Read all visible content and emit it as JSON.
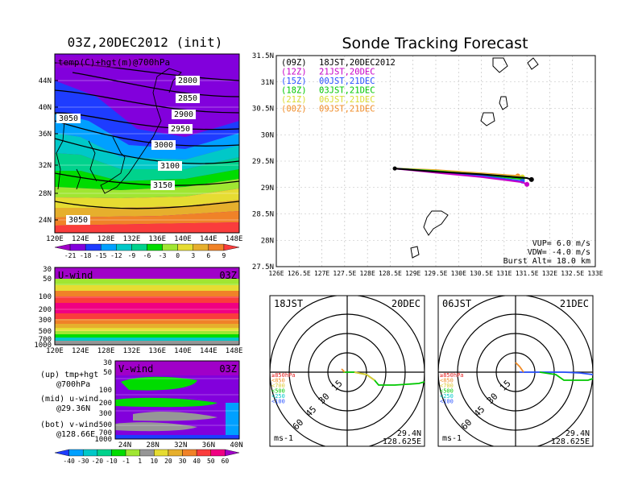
{
  "left_top": {
    "title": "03Z,20DEC2012 (init)",
    "label": "temp(C)+hgt(m)@700hPa",
    "lat_ticks": [
      "44N",
      "40N",
      "36N",
      "32N",
      "28N",
      "24N"
    ],
    "lon_ticks": [
      "120E",
      "124E",
      "128E",
      "132E",
      "136E",
      "140E",
      "144E",
      "148E"
    ],
    "contours": [
      "2800",
      "2850",
      "2900",
      "2950",
      "3000",
      "3050",
      "3100",
      "3150",
      "3050"
    ],
    "colorbar_labels": [
      "-21",
      "-18",
      "-15",
      "-12",
      "-9",
      "-6",
      "-3",
      "0",
      "3",
      "6",
      "9"
    ],
    "colorbar_colors": [
      "#a000c8",
      "#8200dc",
      "#1e3cff",
      "#00a0ff",
      "#00c8c8",
      "#00d28c",
      "#00dc00",
      "#a0e632",
      "#e6dc32",
      "#e6af2d",
      "#f08228",
      "#fa3c3c"
    ]
  },
  "u_wind": {
    "label": "U-wind",
    "time": "03Z",
    "p_ticks": [
      "30",
      "50",
      "100",
      "200",
      "300",
      "500",
      "700",
      "1000"
    ],
    "lon_ticks": [
      "120E",
      "124E",
      "128E",
      "132E",
      "136E",
      "140E",
      "144E",
      "148E"
    ]
  },
  "v_wind": {
    "label": "V-wind",
    "time": "03Z",
    "p_ticks": [
      "30",
      "50",
      "100",
      "200",
      "300",
      "500",
      "700",
      "1000"
    ],
    "lat_ticks": [
      "24N",
      "28N",
      "32N",
      "36N",
      "40N"
    ]
  },
  "panel_notes": [
    [
      "(up) tmp+hgt",
      "@700hPa"
    ],
    [
      "(mid) u-wind",
      "@29.36N"
    ],
    [
      "(bot) v-wind",
      "@128.66E"
    ]
  ],
  "bottom_colorbar": {
    "labels": [
      "-40",
      "-30",
      "-20",
      "-10",
      "-1",
      "1",
      "10",
      "20",
      "30",
      "40",
      "50",
      "60"
    ],
    "colors": [
      "#1e3cff",
      "#00a0ff",
      "#00c8c8",
      "#00d28c",
      "#00dc00",
      "#a0e632",
      "#969696",
      "#e6dc32",
      "#e6af2d",
      "#f08228",
      "#fa3c3c",
      "#f00082",
      "#a000c8"
    ]
  },
  "tracking": {
    "title": "Sonde Tracking Forecast",
    "lat_ticks": [
      "31.5N",
      "31N",
      "30.5N",
      "30N",
      "29.5N",
      "29N",
      "28.5N",
      "28N",
      "27.5N"
    ],
    "lon_ticks": [
      "126E",
      "126.5E",
      "127E",
      "127.5E",
      "128E",
      "128.5E",
      "129E",
      "129.5E",
      "130E",
      "130.5E",
      "131E",
      "131.5E",
      "132E",
      "132.5E",
      "133E"
    ],
    "legend": [
      {
        "code": "(09Z)",
        "label": "18JST,20DEC2012",
        "color": "#000000"
      },
      {
        "code": "(12Z)",
        "label": "21JST,20DEC",
        "color": "#c800c8"
      },
      {
        "code": "(15Z)",
        "label": "00JST,21DEC",
        "color": "#2850ff"
      },
      {
        "code": "(18Z)",
        "label": "03JST,21DEC",
        "color": "#00c800"
      },
      {
        "code": "(21Z)",
        "label": "06JST,21DEC",
        "color": "#dcdc32"
      },
      {
        "code": "(00Z)",
        "label": "09JST,21DEC",
        "color": "#f08c28"
      }
    ],
    "info": [
      "VUP= 6.0 m/s",
      "VDW= -4.0 m/s",
      "Burst Alt= 18.0 km"
    ]
  },
  "polar_left": {
    "time": "18JST",
    "date": "20DEC",
    "ring_labels": [
      "15",
      "30",
      "45",
      "60"
    ],
    "levels": [
      {
        "label": "≥850hPa",
        "color": "#e61e1e"
      },
      {
        "label": "<850",
        "color": "#f08c28"
      },
      {
        "label": "<700",
        "color": "#dcc832"
      },
      {
        "label": "<500",
        "color": "#00c800"
      },
      {
        "label": "<250",
        "color": "#00c8c8"
      },
      {
        "label": "<100",
        "color": "#2850ff"
      }
    ],
    "unit": "ms-1",
    "lat": "29.4N",
    "lon": "128.625E"
  },
  "polar_right": {
    "time": "06JST",
    "date": "21DEC",
    "ring_labels": [
      "15",
      "30",
      "45",
      "60"
    ],
    "levels": [
      {
        "label": "≥850hPa",
        "color": "#e61e1e"
      },
      {
        "label": "<850",
        "color": "#f08c28"
      },
      {
        "label": "<700",
        "color": "#dcc832"
      },
      {
        "label": "<500",
        "color": "#00c800"
      },
      {
        "label": "<250",
        "color": "#00c8c8"
      },
      {
        "label": "<100",
        "color": "#2850ff"
      }
    ],
    "unit": "ms-1",
    "lat": "29.4N",
    "lon": "128.625E"
  },
  "chart_data": [
    {
      "type": "heatmap",
      "title": "03Z,20DEC2012 (init)",
      "subtitle": "temp(C)+hgt(m)@700hPa",
      "xlim": [
        120,
        149
      ],
      "ylim": [
        22,
        48
      ],
      "contour_levels": [
        2800,
        2850,
        2900,
        2950,
        3000,
        3050,
        3100,
        3150
      ]
    },
    {
      "type": "heatmap",
      "title": "U-wind",
      "xlim": [
        120,
        149
      ],
      "p_range": [
        1000,
        30
      ]
    },
    {
      "type": "heatmap",
      "title": "V-wind",
      "xlim": [
        24,
        40
      ],
      "p_range": [
        1000,
        30
      ]
    },
    {
      "type": "line",
      "title": "Sonde Tracking Forecast",
      "xlim": [
        126,
        133
      ],
      "ylim": [
        27.5,
        31.5
      ],
      "series": [
        {
          "name": "(09Z) 18JST,20DEC2012",
          "x": [
            128.6,
            129.5,
            130.5,
            131.5,
            131.6
          ],
          "y": [
            29.36,
            29.3,
            29.25,
            29.18,
            29.15
          ]
        },
        {
          "name": "(12Z) 21JST,20DEC",
          "x": [
            128.6,
            129.5,
            130.5,
            131.4,
            131.5
          ],
          "y": [
            29.36,
            29.28,
            29.2,
            29.1,
            29.06
          ]
        },
        {
          "name": "(15Z) 00JST,21DEC",
          "x": [
            128.6,
            129.5,
            130.5,
            131.4
          ],
          "y": [
            29.36,
            29.3,
            29.22,
            29.12
          ]
        },
        {
          "name": "(18Z) 03JST,21DEC",
          "x": [
            128.6,
            129.5,
            130.5,
            131.4
          ],
          "y": [
            29.36,
            29.31,
            29.24,
            29.16
          ]
        },
        {
          "name": "(21Z) 06JST,21DEC",
          "x": [
            128.6,
            129.5,
            130.5,
            131.4
          ],
          "y": [
            29.36,
            29.32,
            29.26,
            29.2
          ]
        },
        {
          "name": "(00Z) 09JST,21DEC",
          "x": [
            128.6,
            129.5,
            130.5,
            131.3
          ],
          "y": [
            29.36,
            29.33,
            29.27,
            29.22
          ]
        }
      ]
    }
  ]
}
